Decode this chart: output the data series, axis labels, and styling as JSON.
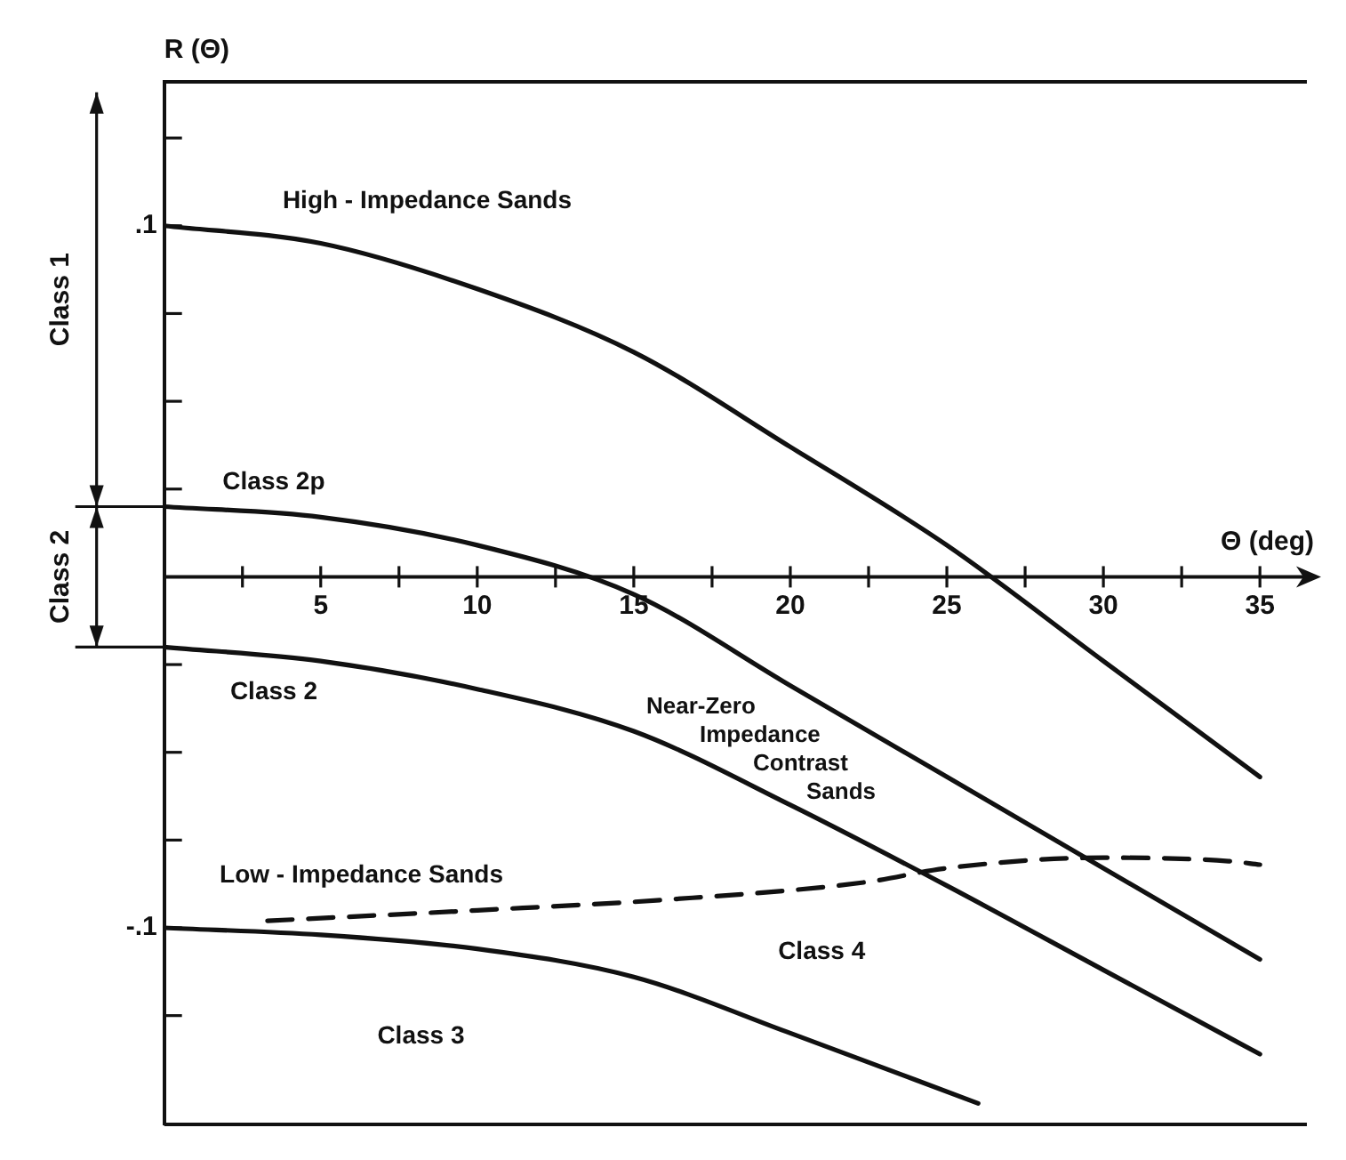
{
  "chart_data": {
    "type": "line",
    "xlabel": "Θ (deg)",
    "ylabel": "R (Θ)",
    "xlim": [
      0,
      36.5
    ],
    "ylim": [
      -0.156,
      0.141
    ],
    "xticks": [
      {
        "value": 2.5,
        "label": null
      },
      5,
      {
        "value": 7.5,
        "label": null
      },
      10,
      {
        "value": 12.5,
        "label": null
      },
      15,
      {
        "value": 17.5,
        "label": null
      },
      20,
      {
        "value": 22.5,
        "label": null
      },
      25,
      {
        "value": 27.5,
        "label": null
      },
      30,
      {
        "value": 32.5,
        "label": null
      },
      35
    ],
    "yticks": [
      {
        "value": -0.125,
        "label": null
      },
      {
        "value": -0.1,
        "label": "-.1"
      },
      {
        "value": -0.075,
        "label": null
      },
      {
        "value": -0.05,
        "label": null
      },
      {
        "value": -0.025,
        "label": null
      },
      {
        "value": 0.025,
        "label": null
      },
      {
        "value": 0.05,
        "label": null
      },
      {
        "value": 0.075,
        "label": null
      },
      {
        "value": 0.1,
        "label": ".1"
      },
      {
        "value": 0.125,
        "label": null
      }
    ],
    "grid": false,
    "legend": false,
    "marker": "none",
    "series": [
      {
        "name": "High - Impedance Sands",
        "color": "#111111",
        "line_style": "solid",
        "x": [
          0,
          5,
          10,
          15,
          20,
          25,
          30,
          35
        ],
        "values": [
          0.1,
          0.095,
          0.082,
          0.064,
          0.037,
          0.009,
          -0.024,
          -0.057
        ]
      },
      {
        "name": "Class 2p",
        "color": "#111111",
        "line_style": "solid",
        "x": [
          0,
          5,
          10,
          15,
          20,
          25,
          30,
          35
        ],
        "values": [
          0.02,
          0.017,
          0.009,
          -0.005,
          -0.031,
          -0.057,
          -0.083,
          -0.109
        ]
      },
      {
        "name": "Class 2",
        "color": "#111111",
        "line_style": "solid",
        "x": [
          0,
          5,
          10,
          15,
          20,
          25,
          30,
          35
        ],
        "values": [
          -0.02,
          -0.024,
          -0.032,
          -0.044,
          -0.065,
          -0.088,
          -0.112,
          -0.136
        ]
      },
      {
        "name": "Class 3",
        "color": "#111111",
        "line_style": "solid",
        "x": [
          0,
          5,
          10,
          15,
          20,
          26
        ],
        "values": [
          -0.1,
          -0.102,
          -0.106,
          -0.114,
          -0.13,
          -0.15
        ]
      },
      {
        "name": "Class 4",
        "color": "#111111",
        "line_style": "dashed",
        "x": [
          3.3,
          10,
          16,
          22.4,
          25,
          30,
          34,
          35
        ],
        "values": [
          -0.098,
          -0.095,
          -0.092,
          -0.087,
          -0.083,
          -0.08,
          -0.081,
          -0.082
        ]
      }
    ],
    "annotations": [
      "Near-Zero Impedance Contrast Sands",
      "Low - Impedance Sands",
      "Class 1",
      "Class 2"
    ]
  }
}
